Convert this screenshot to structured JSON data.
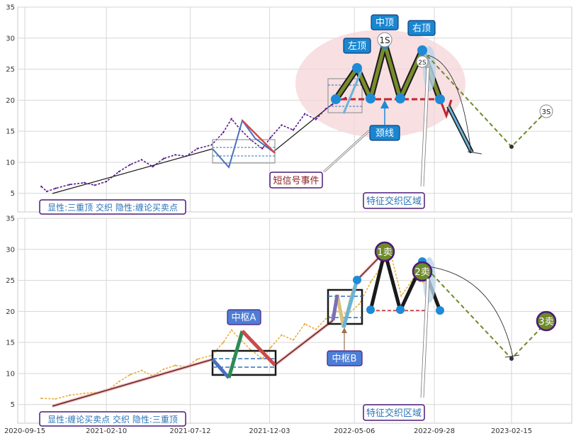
{
  "chart_data": [
    {
      "type": "line",
      "panel": "top",
      "ylim": [
        2,
        35
      ],
      "yticks": [
        5,
        10,
        15,
        20,
        25,
        30,
        35
      ],
      "grid": true,
      "caption": "显性:三重顶 交织 隐性:缠论买卖点",
      "series": [
        {
          "kind": "price",
          "color": "#5b1a8c",
          "points": [
            [
              "2020-10-15",
              6.1
            ],
            [
              "2020-10-25",
              5.3
            ],
            [
              "2020-11-10",
              5.8
            ],
            [
              "2020-12-05",
              6.4
            ],
            [
              "2021-01-01",
              6.7
            ],
            [
              "2021-01-20",
              6.3
            ],
            [
              "2021-02-10",
              6.9
            ],
            [
              "2021-03-05",
              8.5
            ],
            [
              "2021-03-25",
              9.6
            ],
            [
              "2021-04-15",
              10.4
            ],
            [
              "2021-05-05",
              9.3
            ],
            [
              "2021-05-25",
              10.6
            ],
            [
              "2021-06-15",
              11.2
            ],
            [
              "2021-07-05",
              11.0
            ],
            [
              "2021-07-25",
              12.2
            ],
            [
              "2021-08-20",
              12.8
            ],
            [
              "2021-09-10",
              14.8
            ],
            [
              "2021-09-25",
              17.0
            ],
            [
              "2021-10-10",
              15.4
            ],
            [
              "2021-10-30",
              13.6
            ],
            [
              "2021-11-20",
              12.2
            ],
            [
              "2021-12-05",
              14.0
            ],
            [
              "2021-12-25",
              16.0
            ],
            [
              "2022-01-15",
              15.2
            ],
            [
              "2022-02-05",
              17.8
            ],
            [
              "2022-02-25",
              16.9
            ],
            [
              "2022-03-15",
              18.6
            ],
            [
              "2022-04-05",
              19.8
            ],
            [
              "2022-04-20",
              20.4
            ]
          ]
        }
      ],
      "labels": {
        "left_top": "左顶",
        "middle_top": "中顶",
        "right_top": "右顶",
        "neckline": "颈线",
        "short_signal": "短信号事件",
        "feature_zone": "特征交织区域",
        "s1": "1S",
        "s2": "2S",
        "s3": "3S"
      }
    },
    {
      "type": "line",
      "panel": "bottom",
      "ylim": [
        2,
        35
      ],
      "yticks": [
        5,
        10,
        15,
        20,
        25,
        30,
        35
      ],
      "xticks": [
        "2020-09-15",
        "2021-02-10",
        "2021-07-12",
        "2021-12-03",
        "2022-05-06",
        "2022-09-28",
        "2023-02-15"
      ],
      "grid": true,
      "caption": "显性:缠论买卖点 交织 隐性:三重顶",
      "series": [
        {
          "kind": "price",
          "color": "#e8b040",
          "points": [
            [
              "2020-10-15",
              6.0
            ],
            [
              "2020-11-10",
              5.9
            ],
            [
              "2020-12-05",
              6.5
            ],
            [
              "2021-01-01",
              6.8
            ],
            [
              "2021-02-10",
              7.1
            ],
            [
              "2021-03-05",
              8.7
            ],
            [
              "2021-03-25",
              9.8
            ],
            [
              "2021-04-15",
              10.5
            ],
            [
              "2021-05-05",
              9.6
            ],
            [
              "2021-05-25",
              10.7
            ],
            [
              "2021-06-15",
              11.3
            ],
            [
              "2021-07-05",
              11.1
            ],
            [
              "2021-07-25",
              12.3
            ],
            [
              "2021-08-20",
              12.9
            ],
            [
              "2021-09-10",
              15.0
            ],
            [
              "2021-09-25",
              17.0
            ],
            [
              "2021-10-10",
              15.6
            ],
            [
              "2021-10-30",
              13.8
            ],
            [
              "2021-11-20",
              12.4
            ],
            [
              "2021-12-05",
              14.2
            ],
            [
              "2021-12-25",
              16.2
            ],
            [
              "2022-01-15",
              15.4
            ],
            [
              "2022-02-05",
              18.0
            ],
            [
              "2022-02-25",
              17.1
            ],
            [
              "2022-03-15",
              18.8
            ],
            [
              "2022-04-05",
              20.0
            ],
            [
              "2022-04-25",
              19.6
            ],
            [
              "2022-05-15",
              21.2
            ],
            [
              "2022-06-05",
              24.8
            ],
            [
              "2022-06-25",
              27.4
            ],
            [
              "2022-07-10",
              29.6
            ],
            [
              "2022-07-30",
              22.5
            ],
            [
              "2022-08-20",
              25.2
            ],
            [
              "2022-09-10",
              24.6
            ]
          ]
        }
      ],
      "labels": {
        "zhongshu_a": "中枢A",
        "zhongshu_b": "中枢B",
        "feature_zone": "特征交织区域",
        "sell1": "1卖",
        "sell2": "2卖",
        "sell3": "3卖"
      }
    }
  ],
  "colors": {
    "ellipse": "#f4d4d8",
    "callout_bg": "#1a86d0",
    "callout_border": "#0e3f7a",
    "caption_border": "#4b1a7a",
    "caption_text": "#2a73b8",
    "tag_border": "#4b1a7a",
    "tag_text": "#8b2222",
    "neck": "#c0282c",
    "trend": "#7a8c2c",
    "node": "#1f8ad6"
  }
}
